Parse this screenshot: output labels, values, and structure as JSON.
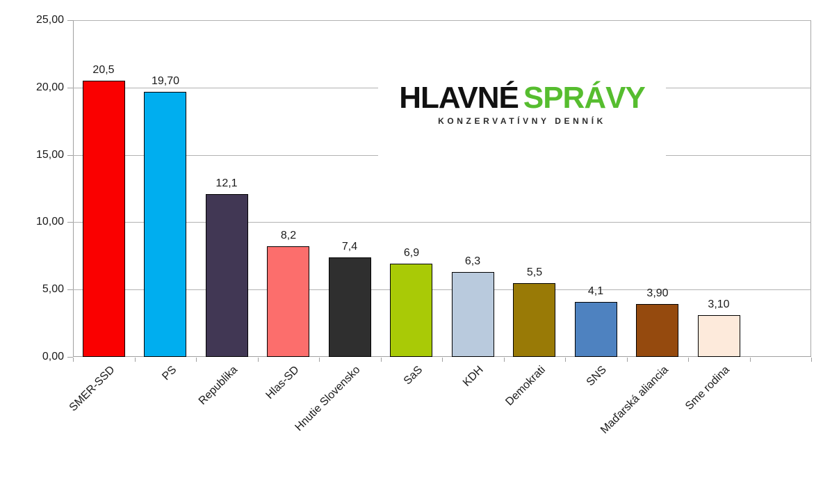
{
  "chart_data": {
    "type": "bar",
    "title": "",
    "xlabel": "",
    "ylabel": "",
    "categories": [
      "SMER-SSD",
      "PS",
      "Republika",
      "Hlas-SD",
      "Hnutie Slovensko",
      "SaS",
      "KDH",
      "Demokrati",
      "SNS",
      "Maďarská aliancia",
      "Sme rodina"
    ],
    "values": [
      20.5,
      19.7,
      12.1,
      8.2,
      7.4,
      6.9,
      6.3,
      5.5,
      4.1,
      3.9,
      3.1
    ],
    "value_labels": [
      "20,5",
      "19,70",
      "12,1",
      "8,2",
      "7,4",
      "6,9",
      "6,3",
      "5,5",
      "4,1",
      "3,90",
      "3,10"
    ],
    "bar_colors": [
      "#fa0000",
      "#00aeef",
      "#413754",
      "#fc6e6c",
      "#2f2f2f",
      "#a9ca06",
      "#b9cadd",
      "#997a06",
      "#4e82c0",
      "#954a0e",
      "#fdeadb"
    ],
    "y_tick_labels": [
      "25,00",
      "20,00",
      "15,00",
      "10,00",
      "5,00",
      "0,00"
    ],
    "y_tick_values": [
      25,
      20,
      15,
      10,
      5,
      0
    ],
    "ylim": [
      0,
      25
    ],
    "grid": true,
    "legend_position": "none",
    "empty_trailing_slots": 1
  },
  "logo": {
    "line1_black": "HLAVNÉ",
    "line1_green": "SPRÁVY",
    "line2": "KONZERVATÍVNY DENNÍK",
    "green_color": "#56bd2f"
  },
  "style": {
    "gridline_color": "#b2b2b2",
    "axis_color": "#a0a0a0",
    "bar_border_color": "#000000",
    "label_color": "#1a1a1a",
    "background": "#ffffff"
  }
}
